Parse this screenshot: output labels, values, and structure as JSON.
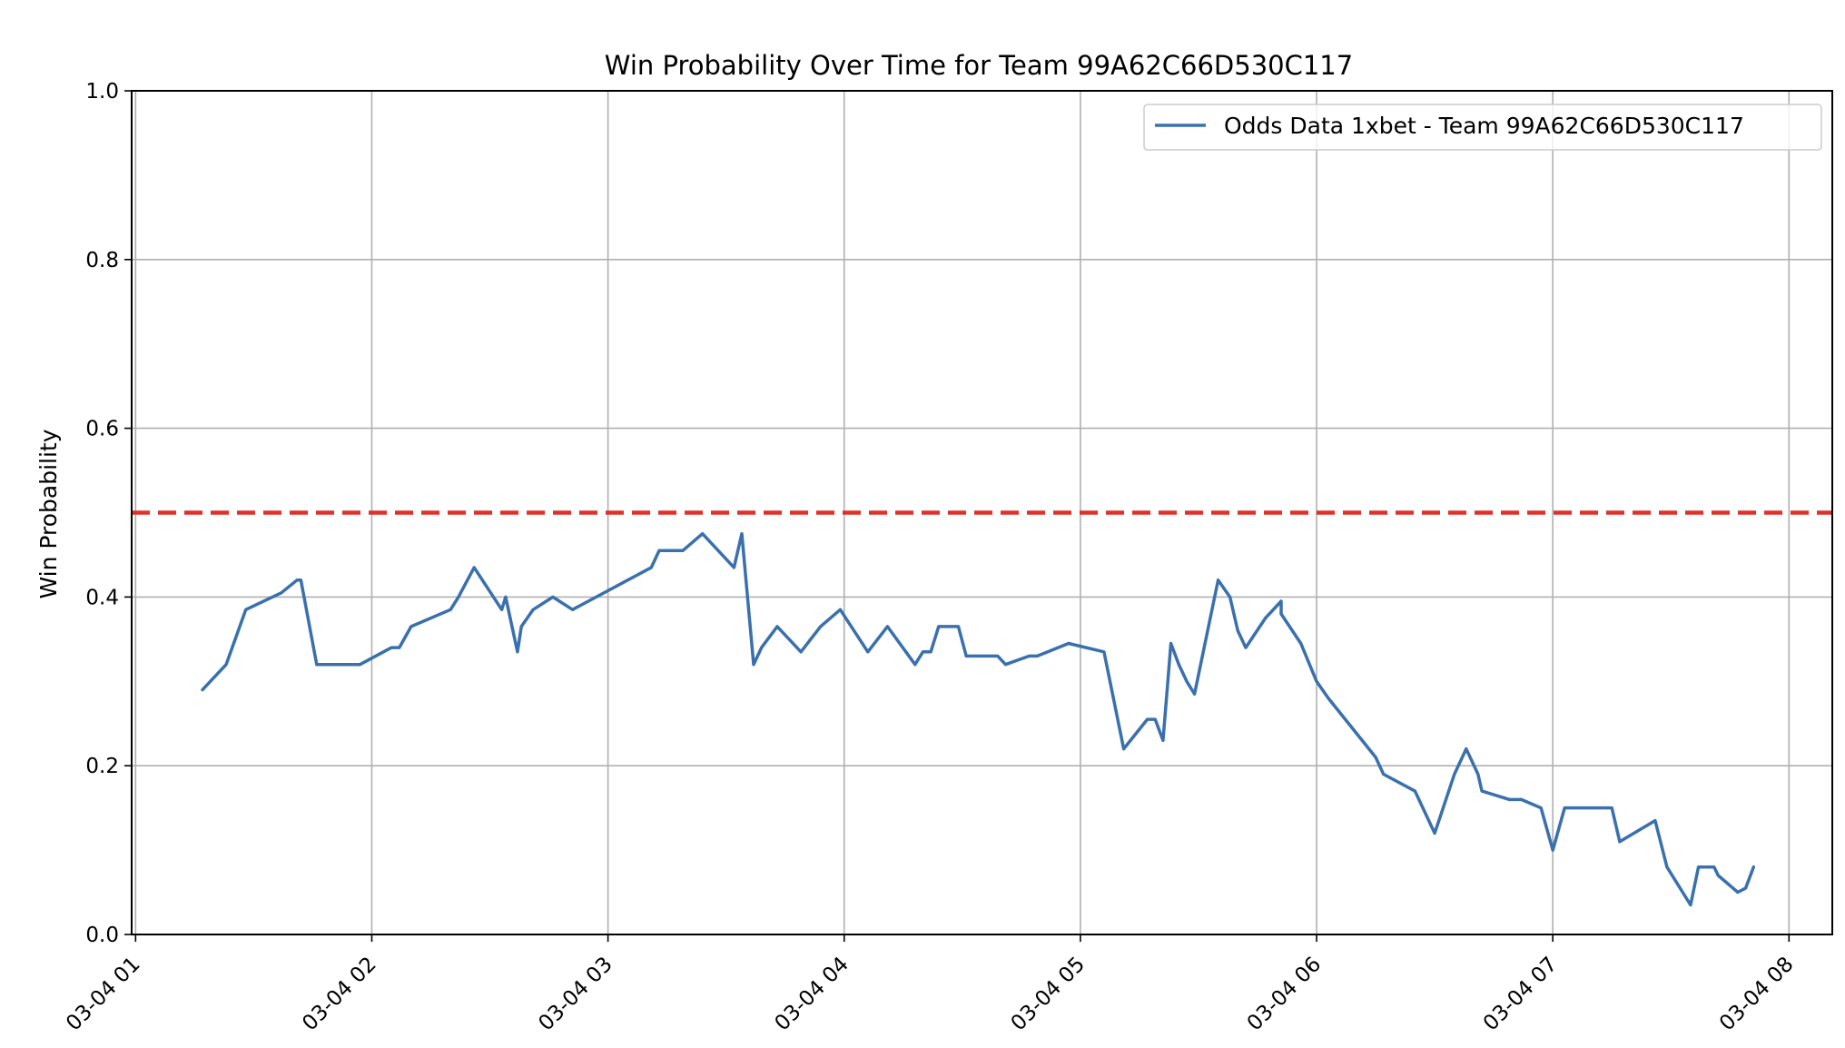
{
  "chart_data": {
    "type": "line",
    "title": "Win Probability Over Time for Team 99A62C66D530C117",
    "xlabel": "",
    "ylabel": "Win Probability",
    "ylim": [
      0.0,
      1.0
    ],
    "xlim": [
      "03-04 00:59",
      "03-04 08:11"
    ],
    "y_ticks": [
      "0.0",
      "0.2",
      "0.4",
      "0.6",
      "0.8",
      "1.0"
    ],
    "x_ticks": [
      "03-04 01",
      "03-04 02",
      "03-04 03",
      "03-04 04",
      "03-04 05",
      "03-04 06",
      "03-04 07",
      "03-04 08"
    ],
    "grid": true,
    "legend_position": "top-right",
    "reference_line": {
      "y": 0.5,
      "color": "#e0302a",
      "style": "dashed"
    },
    "series": [
      {
        "name": "Odds Data 1xbet - Team 99A62C66D530C117",
        "color": "#3a70ad",
        "x": [
          "03-04 01:17",
          "03-04 01:23",
          "03-04 01:28",
          "03-04 01:37",
          "03-04 01:41",
          "03-04 01:42",
          "03-04 01:46",
          "03-04 01:57",
          "03-04 02:05",
          "03-04 02:07",
          "03-04 02:10",
          "03-04 02:20",
          "03-04 02:22",
          "03-04 02:26",
          "03-04 02:33",
          "03-04 02:34",
          "03-04 02:37",
          "03-04 02:38",
          "03-04 02:41",
          "03-04 02:46",
          "03-04 02:51",
          "03-04 03:11",
          "03-04 03:13",
          "03-04 03:19",
          "03-04 03:24",
          "03-04 03:32",
          "03-04 03:34",
          "03-04 03:37",
          "03-04 03:39",
          "03-04 03:43",
          "03-04 03:49",
          "03-04 03:54",
          "03-04 03:59",
          "03-04 04:06",
          "03-04 04:11",
          "03-04 04:18",
          "03-04 04:20",
          "03-04 04:22",
          "03-04 04:24",
          "03-04 04:29",
          "03-04 04:31",
          "03-04 04:39",
          "03-04 04:41",
          "03-04 04:47",
          "03-04 04:49",
          "03-04 04:57",
          "03-04 05:06",
          "03-04 05:11",
          "03-04 05:17",
          "03-04 05:19",
          "03-04 05:21",
          "03-04 05:23",
          "03-04 05:25",
          "03-04 05:27",
          "03-04 05:29",
          "03-04 05:35",
          "03-04 05:38",
          "03-04 05:40",
          "03-04 05:42",
          "03-04 05:47",
          "03-04 05:51",
          "03-04 05:51",
          "03-04 05:56",
          "03-04 06:00",
          "03-04 06:03",
          "03-04 06:15",
          "03-04 06:17",
          "03-04 06:25",
          "03-04 06:30",
          "03-04 06:35",
          "03-04 06:38",
          "03-04 06:41",
          "03-04 06:42",
          "03-04 06:49",
          "03-04 06:52",
          "03-04 06:57",
          "03-04 07:00",
          "03-04 07:03",
          "03-04 07:15",
          "03-04 07:17",
          "03-04 07:26",
          "03-04 07:29",
          "03-04 07:35",
          "03-04 07:37",
          "03-04 07:41",
          "03-04 07:42",
          "03-04 07:47",
          "03-04 07:49",
          "03-04 07:51"
        ],
        "values": [
          0.29,
          0.32,
          0.385,
          0.405,
          0.42,
          0.42,
          0.32,
          0.32,
          0.34,
          0.34,
          0.365,
          0.385,
          0.4,
          0.435,
          0.385,
          0.4,
          0.335,
          0.365,
          0.385,
          0.4,
          0.385,
          0.435,
          0.455,
          0.455,
          0.475,
          0.435,
          0.475,
          0.32,
          0.34,
          0.365,
          0.335,
          0.365,
          0.385,
          0.335,
          0.365,
          0.32,
          0.335,
          0.335,
          0.365,
          0.365,
          0.33,
          0.33,
          0.32,
          0.33,
          0.33,
          0.345,
          0.335,
          0.22,
          0.255,
          0.255,
          0.23,
          0.345,
          0.32,
          0.3,
          0.285,
          0.42,
          0.4,
          0.36,
          0.34,
          0.375,
          0.395,
          0.38,
          0.345,
          0.3,
          0.28,
          0.21,
          0.19,
          0.17,
          0.12,
          0.19,
          0.22,
          0.19,
          0.17,
          0.16,
          0.16,
          0.15,
          0.1,
          0.15,
          0.15,
          0.11,
          0.135,
          0.08,
          0.035,
          0.08,
          0.08,
          0.07,
          0.05,
          0.055,
          0.08
        ]
      }
    ]
  }
}
